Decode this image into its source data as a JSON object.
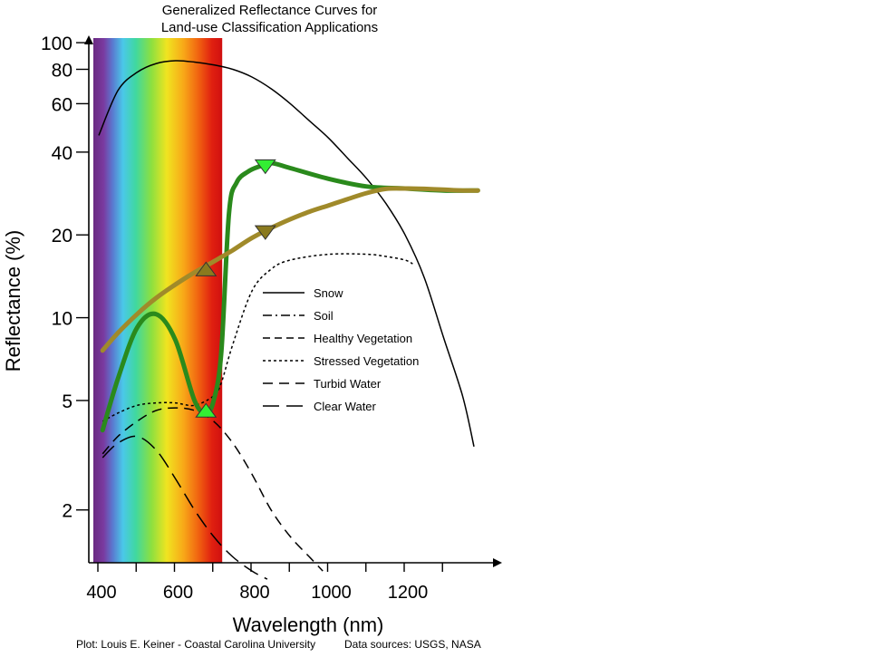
{
  "chart_data": {
    "type": "line",
    "title": "Generalized Reflectance Curves for",
    "subtitle": "Land-use Classification Applications",
    "xlabel": "Wavelength (nm)",
    "ylabel": "Reflectance (%)",
    "xlim": [
      370,
      1400
    ],
    "ylim": [
      1.3,
      100
    ],
    "yscale": "log",
    "xticks": [
      400,
      600,
      800,
      1000,
      1200
    ],
    "xminor_ticks": [
      500,
      700,
      900,
      1100,
      1300
    ],
    "yticks": [
      2,
      5,
      10,
      20,
      40,
      60,
      80,
      100
    ],
    "grid": false,
    "legend_position": "right of center",
    "spectrum_band": {
      "x_range": [
        400,
        720
      ],
      "label": "visible spectrum gradient"
    },
    "series": [
      {
        "name": "Snow",
        "style": "solid",
        "color": "#000000",
        "x": [
          400,
          450,
          500,
          550,
          600,
          650,
          700,
          750,
          800,
          850,
          900,
          950,
          1000,
          1050,
          1100,
          1150,
          1200,
          1250,
          1300,
          1350,
          1380
        ],
        "y": [
          46,
          67,
          78,
          84,
          86,
          85,
          83,
          80,
          75,
          68,
          60,
          52,
          45,
          38,
          32,
          26,
          20,
          14,
          8.5,
          5.2,
          3.4
        ]
      },
      {
        "name": "Soil",
        "style": "dash-dot",
        "color": "#000000",
        "x": [
          410,
          450,
          500,
          550,
          600,
          650,
          700,
          750,
          800,
          850,
          900,
          950,
          1000,
          1050,
          1100,
          1150,
          1200,
          1250,
          1300,
          1350,
          1390
        ],
        "y": [
          7.6,
          8.8,
          10.3,
          11.8,
          13.2,
          14.6,
          16,
          17.6,
          19.5,
          21.2,
          22.8,
          24.3,
          25.6,
          27,
          28.4,
          29.4,
          29.5,
          29.4,
          29.2,
          29,
          29
        ]
      },
      {
        "name": "Healthy Vegetation",
        "style": "short-dash",
        "color": "#000000",
        "x": [
          410,
          450,
          500,
          550,
          600,
          650,
          680,
          700,
          720,
          740,
          760,
          790,
          820,
          850,
          900,
          1000,
          1100,
          1200,
          1300,
          1390
        ],
        "y": [
          3.9,
          6,
          9.2,
          10.3,
          8.3,
          5,
          4.5,
          5,
          7.5,
          24,
          31,
          34,
          35.5,
          36.5,
          35,
          32,
          30,
          29.5,
          29,
          29
        ]
      },
      {
        "name": "Stressed Vegetation",
        "style": "dotted",
        "color": "#000000",
        "x": [
          410,
          450,
          500,
          550,
          600,
          650,
          700,
          720,
          750,
          800,
          850,
          900,
          1000,
          1100,
          1150,
          1200,
          1220
        ],
        "y": [
          4.2,
          4.5,
          4.8,
          4.9,
          4.9,
          4.8,
          5.2,
          5.8,
          8,
          12.5,
          15,
          16.2,
          17,
          17,
          16.7,
          16.2,
          15.7
        ]
      },
      {
        "name": "Turbid Water",
        "style": "dashed",
        "color": "#000000",
        "x": [
          410,
          450,
          500,
          550,
          600,
          650,
          700,
          750,
          800,
          850,
          900,
          950,
          985
        ],
        "y": [
          3.2,
          3.7,
          4.2,
          4.6,
          4.7,
          4.6,
          4.2,
          3.5,
          2.7,
          2,
          1.6,
          1.35,
          1.2
        ]
      },
      {
        "name": "Clear Water",
        "style": "long-dash",
        "color": "#000000",
        "x": [
          410,
          450,
          500,
          550,
          600,
          650,
          700,
          750,
          800,
          840
        ],
        "y": [
          3.1,
          3.5,
          3.7,
          3.3,
          2.6,
          2,
          1.6,
          1.35,
          1.2,
          1.12
        ]
      }
    ],
    "highlight_curves": [
      {
        "series": "Healthy Vegetation",
        "color": "#2a8a1c"
      },
      {
        "series": "Soil",
        "color": "#a08a2a"
      }
    ],
    "markers": [
      {
        "x": 680,
        "y": 4.35,
        "direction": "up",
        "color": "#33ee33"
      },
      {
        "x": 835,
        "y": 37.5,
        "direction": "down",
        "color": "#33ee33"
      },
      {
        "x": 680,
        "y": 14.2,
        "direction": "up",
        "color": "#8a7a1e"
      },
      {
        "x": 835,
        "y": 21.6,
        "direction": "down",
        "color": "#8a7a1e"
      }
    ]
  },
  "credits": {
    "left": "Plot: Louis E. Keiner - Coastal Carolina University",
    "right": "Data sources: USGS, NASA"
  }
}
